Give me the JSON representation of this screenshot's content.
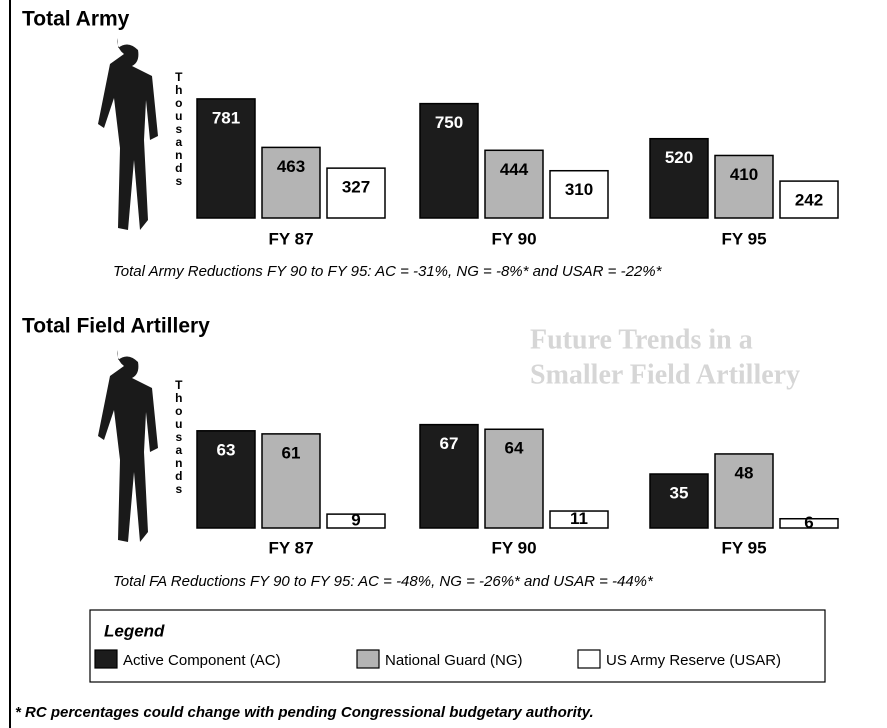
{
  "chart_data": [
    {
      "type": "bar",
      "title": "Total Army",
      "ylabel": "Thousands",
      "categories": [
        "FY 87",
        "FY 90",
        "FY 95"
      ],
      "series": [
        {
          "name": "Active Component (AC)",
          "color": "#1c1c1c",
          "values": [
            781,
            750,
            520
          ]
        },
        {
          "name": "National Guard (NG)",
          "color": "#b4b4b4",
          "values": [
            463,
            444,
            410
          ]
        },
        {
          "name": "US Army Reserve (USAR)",
          "color": "#ffffff",
          "values": [
            327,
            310,
            242
          ]
        }
      ],
      "ylim": [
        0,
        800
      ],
      "caption": "Total Army Reductions FY 90 to FY 95: AC = -31%, NG = -8%* and USAR = -22%*"
    },
    {
      "type": "bar",
      "title": "Total Field Artillery",
      "ylabel": "Thousands",
      "categories": [
        "FY 87",
        "FY 90",
        "FY 95"
      ],
      "series": [
        {
          "name": "Active Component (AC)",
          "color": "#1c1c1c",
          "values": [
            63,
            67,
            35
          ]
        },
        {
          "name": "National Guard (NG)",
          "color": "#b4b4b4",
          "values": [
            61,
            64,
            48
          ]
        },
        {
          "name": "US Army Reserve (USAR)",
          "color": "#ffffff",
          "values": [
            9,
            11,
            6
          ]
        }
      ],
      "ylim": [
        0,
        70
      ],
      "caption": "Total FA Reductions FY 90 to FY 95: AC = -48%, NG = -26%* and USAR = -44%*"
    }
  ],
  "legend_title": "Legend",
  "footnote": "* RC percentages could change with pending Congressional budgetary authority.",
  "background_heading": [
    "Future Trends in a",
    "Smaller Field Artillery"
  ]
}
